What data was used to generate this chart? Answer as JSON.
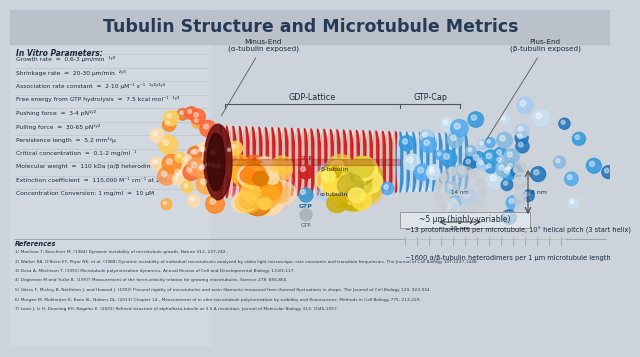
{
  "title": "Tubulin Structure and Microtubule Metrics",
  "title_color": "#1a3a5c",
  "bg_top": "#c8cdd4",
  "bg_bottom": "#d8dde4",
  "bg_left": "#dde2e8",
  "minus_end_label": "Minus-End\n(α-tubulin exposed)",
  "plus_end_label": "Plus-End\n(β-tubulin exposed)",
  "gdp_lattice_label": "GDP-Lattice",
  "gtp_cap_label": "GTP-Cap",
  "variability_label": "~5 μm (highly variable)",
  "protofilament_label": "~13 protofilaments per microtubule, 10° helical pitch (3 start helix)",
  "heterodimer_label": "~1600 α/β-tubulin heterodimers per 1 μm microtubule length",
  "diameter_label": "14 nm",
  "diameter_label2": "8 nm",
  "length_label": "25 nm",
  "params_title": "In Vitro Parameters:",
  "params": [
    "Growth rate  ≈  0.6-3 μm/min  ¹ʸ²",
    "Shrinkage rate  ≈  20-30 μm/min  ²ʸ³",
    "Association rate constant  ≈  2·10 μM⁻¹ s⁻¹  ¹ʸ²ʸ³ʸ⁴",
    "Free energy from GTP hydrolysis  ≈  7.5 kcal mol⁻¹  ¹ʸ²",
    "Pushing force  ≈  3-4 pN¹ʸ²",
    "Pulling force  ≈  30-65 pN¹ʸ²",
    "Persistence length  ≈  5.2 mm¹ʸµ",
    "Critical concentration  ≈  0.1-2 mg/ml  ¹",
    "Molecular weight  ≈  110 kDa (α/β heterodimer)",
    "Extinction coefficient  ≈  115,000 M⁻¹ cm⁻¹ at 280 nm",
    "Concentration Conversion: 1 mg/ml  ≈  10 μM"
  ],
  "references_title": "References",
  "references": [
    "1) MacIivar T, Kirschner M. (1984) Dynamic instability of microtubule growth. Nature 312, 237-242.",
    "2) Walker RA, O'Brien ET, Pryer NK, et al. (1988) Dynamic instability of individual microtubules analyzed by video light microscope: rate constants and transition frequencies. The Journal of Cell Biology 107:1437-1448.",
    "3) Desa A, Mitchison T. (1991) Microtubule polymerization dynamics. Annual Review of Cell and Developmental Biology. 13:83-117.",
    "4) Dogterom M and Yurke B. (1997) Measurement of the force-velocity relation for growing microtubules. Science 278: 856-860.",
    "5) Gittes F, Mickey B, Nettleton J, and Howard J. (1993) Flexural rigidity of microtubules and actin filaments measured from thermal fluctuations in shape. The Journal of Cell Biology 120: 923-934.",
    "6) Morgan M, Mukherjee K, Kane SL, Nabers DL. (2013) Chapter 14 - Measurement of in vitro microtubule polymerization by turbidity and fluorescence. Methods in Cell Biology 775: 213-229.",
    "7) Lowe J, Li H, Downing KH, Nogales E. (2001) Refined structure of alpha/beta-tubulin at 3.5 A resolution. Journal of Molecular Biology 313: 1045-1057."
  ]
}
